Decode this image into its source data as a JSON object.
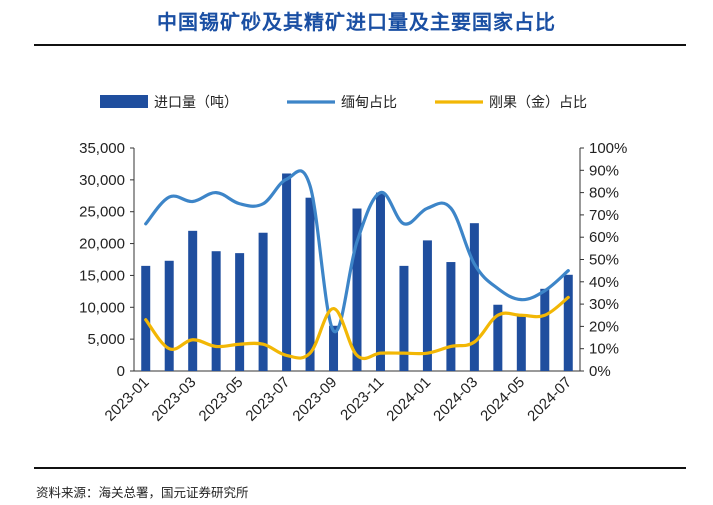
{
  "title": "中国锡矿砂及其精矿进口量及主要国家占比",
  "source": "资料来源：海关总署，国元证券研究所",
  "chart_data": {
    "type": "bar+line",
    "categories": [
      "2023-01",
      "2023-02",
      "2023-03",
      "2023-04",
      "2023-05",
      "2023-06",
      "2023-07",
      "2023-08",
      "2023-09",
      "2023-10",
      "2023-11",
      "2023-12",
      "2024-01",
      "2024-02",
      "2024-03",
      "2024-04",
      "2024-05",
      "2024-06",
      "2024-07"
    ],
    "x_tick_labels": [
      "2023-01",
      "2023-03",
      "2023-05",
      "2023-07",
      "2023-09",
      "2023-11",
      "2024-01",
      "2024-03",
      "2024-05",
      "2024-07"
    ],
    "left_axis": {
      "ylim": [
        0,
        35000
      ],
      "ticks": [
        "0",
        "5,000",
        "10,000",
        "15,000",
        "20,000",
        "25,000",
        "30,000",
        "35,000"
      ]
    },
    "right_axis": {
      "ylim": [
        0,
        100
      ],
      "ticks": [
        "0%",
        "10%",
        "20%",
        "30%",
        "40%",
        "50%",
        "60%",
        "70%",
        "80%",
        "90%",
        "100%"
      ]
    },
    "legend_placement": "top",
    "series": [
      {
        "name": "进口量（吨）",
        "type": "bar",
        "axis": "left",
        "color": "#1f4e9e",
        "values": [
          16500,
          17300,
          22000,
          18800,
          18500,
          21700,
          31000,
          27200,
          7100,
          25500,
          28000,
          16500,
          20500,
          17100,
          23200,
          10400,
          8900,
          12900,
          15100
        ]
      },
      {
        "name": "缅甸占比",
        "type": "line",
        "axis": "right",
        "color": "#3d85c8",
        "values": [
          66,
          78,
          76,
          80,
          75,
          75,
          86,
          83,
          18,
          58,
          80,
          66,
          73,
          73,
          48,
          37,
          32,
          36,
          45
        ]
      },
      {
        "name": "刚果（金）占比",
        "type": "line",
        "axis": "right",
        "color": "#f2b705",
        "values": [
          23,
          10,
          14,
          11,
          12,
          12,
          7,
          8,
          28,
          7,
          8,
          8,
          8,
          11,
          13,
          25,
          25,
          25,
          33
        ]
      }
    ]
  }
}
